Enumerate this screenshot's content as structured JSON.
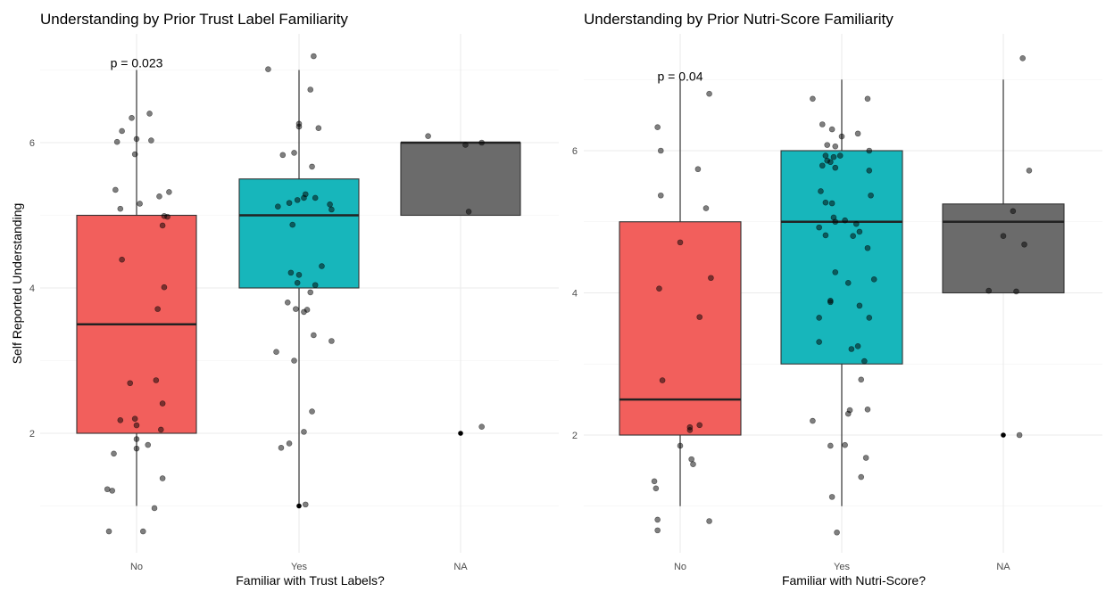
{
  "chart_data": [
    {
      "type": "box",
      "title": "Understanding by Prior Trust Label Familiarity",
      "xlabel": "Familiar with Trust Labels?",
      "ylabel": "Self Reported Understanding",
      "categories": [
        "No",
        "Yes",
        "NA"
      ],
      "yticks": [
        2,
        4,
        6
      ],
      "ylim": [
        0.5,
        7.8
      ],
      "annotation": {
        "text": "p = 0.023",
        "x": 1,
        "y": 7.1
      },
      "colors": [
        "#F25F5C",
        "#17B6BB",
        "#6B6B6B"
      ],
      "boxes": [
        {
          "category": "No",
          "min": 1,
          "q1": 2,
          "median": 3.5,
          "q3": 5,
          "max": 7,
          "outliers": []
        },
        {
          "category": "Yes",
          "min": 1,
          "q1": 4,
          "median": 5,
          "q3": 5.5,
          "max": 7,
          "outliers": [
            1
          ]
        },
        {
          "category": "NA",
          "min": 5,
          "q1": 5,
          "median": 6,
          "q3": 6,
          "max": 6,
          "outliers": [
            2
          ]
        }
      ],
      "points": [
        {
          "cat": 1,
          "dx": -0.17,
          "y": 0.65
        },
        {
          "cat": 1,
          "dx": 0.04,
          "y": 0.65
        },
        {
          "cat": 1,
          "dx": 0.11,
          "y": 0.97
        },
        {
          "cat": 1,
          "dx": -0.18,
          "y": 1.23
        },
        {
          "cat": 1,
          "dx": -0.15,
          "y": 1.21
        },
        {
          "cat": 1,
          "dx": -0.14,
          "y": 1.72
        },
        {
          "cat": 1,
          "dx": 0.16,
          "y": 1.38
        },
        {
          "cat": 1,
          "dx": 0.0,
          "y": 1.79
        },
        {
          "cat": 1,
          "dx": 0.0,
          "y": 1.92
        },
        {
          "cat": 1,
          "dx": 0.07,
          "y": 1.84
        },
        {
          "cat": 1,
          "dx": -0.1,
          "y": 2.18
        },
        {
          "cat": 1,
          "dx": -0.01,
          "y": 2.2
        },
        {
          "cat": 1,
          "dx": 0.0,
          "y": 2.11
        },
        {
          "cat": 1,
          "dx": 0.15,
          "y": 2.05
        },
        {
          "cat": 1,
          "dx": -0.04,
          "y": 2.69
        },
        {
          "cat": 1,
          "dx": 0.12,
          "y": 2.73
        },
        {
          "cat": 1,
          "dx": 0.16,
          "y": 2.41
        },
        {
          "cat": 1,
          "dx": 0.13,
          "y": 3.71
        },
        {
          "cat": 1,
          "dx": 0.17,
          "y": 4.01
        },
        {
          "cat": 1,
          "dx": -0.09,
          "y": 4.39
        },
        {
          "cat": 1,
          "dx": 0.16,
          "y": 4.86
        },
        {
          "cat": 1,
          "dx": 0.17,
          "y": 4.99
        },
        {
          "cat": 1,
          "dx": 0.19,
          "y": 4.98
        },
        {
          "cat": 1,
          "dx": -0.1,
          "y": 5.09
        },
        {
          "cat": 1,
          "dx": 0.02,
          "y": 5.16
        },
        {
          "cat": 1,
          "dx": 0.14,
          "y": 5.26
        },
        {
          "cat": 1,
          "dx": 0.2,
          "y": 5.32
        },
        {
          "cat": 1,
          "dx": -0.13,
          "y": 5.35
        },
        {
          "cat": 1,
          "dx": -0.01,
          "y": 5.84
        },
        {
          "cat": 1,
          "dx": -0.12,
          "y": 6.01
        },
        {
          "cat": 1,
          "dx": 0.0,
          "y": 6.05
        },
        {
          "cat": 1,
          "dx": 0.09,
          "y": 6.03
        },
        {
          "cat": 1,
          "dx": -0.09,
          "y": 6.16
        },
        {
          "cat": 1,
          "dx": -0.03,
          "y": 6.34
        },
        {
          "cat": 1,
          "dx": 0.08,
          "y": 6.4
        },
        {
          "cat": 2,
          "dx": -0.19,
          "y": 7.01
        },
        {
          "cat": 2,
          "dx": 0.09,
          "y": 7.19
        },
        {
          "cat": 2,
          "dx": 0.07,
          "y": 6.73
        },
        {
          "cat": 2,
          "dx": 0.0,
          "y": 6.22
        },
        {
          "cat": 2,
          "dx": 0.0,
          "y": 6.26
        },
        {
          "cat": 2,
          "dx": 0.12,
          "y": 6.2
        },
        {
          "cat": 2,
          "dx": -0.1,
          "y": 5.83
        },
        {
          "cat": 2,
          "dx": -0.03,
          "y": 5.86
        },
        {
          "cat": 2,
          "dx": 0.08,
          "y": 5.67
        },
        {
          "cat": 2,
          "dx": -0.13,
          "y": 5.12
        },
        {
          "cat": 2,
          "dx": -0.06,
          "y": 5.17
        },
        {
          "cat": 2,
          "dx": -0.01,
          "y": 5.21
        },
        {
          "cat": 2,
          "dx": 0.03,
          "y": 5.24
        },
        {
          "cat": 2,
          "dx": 0.04,
          "y": 5.29
        },
        {
          "cat": 2,
          "dx": 0.1,
          "y": 5.24
        },
        {
          "cat": 2,
          "dx": 0.19,
          "y": 5.15
        },
        {
          "cat": 2,
          "dx": 0.2,
          "y": 5.08
        },
        {
          "cat": 2,
          "dx": -0.04,
          "y": 4.87
        },
        {
          "cat": 2,
          "dx": -0.05,
          "y": 4.21
        },
        {
          "cat": 2,
          "dx": 0.14,
          "y": 4.3
        },
        {
          "cat": 2,
          "dx": 0.0,
          "y": 4.18
        },
        {
          "cat": 2,
          "dx": -0.01,
          "y": 4.07
        },
        {
          "cat": 2,
          "dx": 0.1,
          "y": 4.04
        },
        {
          "cat": 2,
          "dx": 0.07,
          "y": 3.94
        },
        {
          "cat": 2,
          "dx": -0.07,
          "y": 3.8
        },
        {
          "cat": 2,
          "dx": -0.02,
          "y": 3.71
        },
        {
          "cat": 2,
          "dx": 0.03,
          "y": 3.67
        },
        {
          "cat": 2,
          "dx": 0.05,
          "y": 3.7
        },
        {
          "cat": 2,
          "dx": 0.09,
          "y": 3.35
        },
        {
          "cat": 2,
          "dx": 0.2,
          "y": 3.27
        },
        {
          "cat": 2,
          "dx": -0.14,
          "y": 3.12
        },
        {
          "cat": 2,
          "dx": -0.03,
          "y": 3.0
        },
        {
          "cat": 2,
          "dx": 0.08,
          "y": 2.3
        },
        {
          "cat": 2,
          "dx": 0.03,
          "y": 2.02
        },
        {
          "cat": 2,
          "dx": -0.06,
          "y": 1.86
        },
        {
          "cat": 2,
          "dx": -0.11,
          "y": 1.8
        },
        {
          "cat": 2,
          "dx": 0.04,
          "y": 1.02
        },
        {
          "cat": 3,
          "dx": -0.2,
          "y": 6.09
        },
        {
          "cat": 3,
          "dx": 0.03,
          "y": 5.97
        },
        {
          "cat": 3,
          "dx": 0.13,
          "y": 6.0
        },
        {
          "cat": 3,
          "dx": 0.05,
          "y": 5.05
        },
        {
          "cat": 3,
          "dx": 0.13,
          "y": 2.09
        }
      ]
    },
    {
      "type": "box",
      "title": "Understanding by Prior Nutri-Score Familiarity",
      "xlabel": "Familiar with Nutri-Score?",
      "ylabel": "",
      "categories": [
        "No",
        "Yes",
        "NA"
      ],
      "yticks": [
        2,
        4,
        6
      ],
      "ylim": [
        0.5,
        7.5
      ],
      "annotation": {
        "text": "p = 0.04",
        "x": 1,
        "y": 7.05
      },
      "colors": [
        "#F25F5C",
        "#17B6BB",
        "#6B6B6B"
      ],
      "boxes": [
        {
          "category": "No",
          "min": 1,
          "q1": 2,
          "median": 2.5,
          "q3": 5,
          "max": 7,
          "outliers": []
        },
        {
          "category": "Yes",
          "min": 1,
          "q1": 3,
          "median": 5,
          "q3": 6,
          "max": 7,
          "outliers": []
        },
        {
          "category": "NA",
          "min": 4,
          "q1": 4,
          "median": 5,
          "q3": 5.25,
          "max": 7,
          "outliers": [
            2
          ]
        }
      ],
      "points": [
        {
          "cat": 1,
          "dx": -0.14,
          "y": 0.81
        },
        {
          "cat": 1,
          "dx": 0.18,
          "y": 0.79
        },
        {
          "cat": 1,
          "dx": -0.14,
          "y": 0.66
        },
        {
          "cat": 1,
          "dx": -0.16,
          "y": 1.35
        },
        {
          "cat": 1,
          "dx": -0.15,
          "y": 1.25
        },
        {
          "cat": 1,
          "dx": 0.07,
          "y": 1.66
        },
        {
          "cat": 1,
          "dx": 0.08,
          "y": 1.59
        },
        {
          "cat": 1,
          "dx": 0.0,
          "y": 1.85
        },
        {
          "cat": 1,
          "dx": 0.06,
          "y": 2.07
        },
        {
          "cat": 1,
          "dx": 0.06,
          "y": 2.11
        },
        {
          "cat": 1,
          "dx": 0.12,
          "y": 2.14
        },
        {
          "cat": 1,
          "dx": -0.11,
          "y": 2.77
        },
        {
          "cat": 1,
          "dx": 0.12,
          "y": 3.66
        },
        {
          "cat": 1,
          "dx": -0.13,
          "y": 4.06
        },
        {
          "cat": 1,
          "dx": 0.19,
          "y": 4.21
        },
        {
          "cat": 1,
          "dx": 0.0,
          "y": 4.71
        },
        {
          "cat": 1,
          "dx": 0.16,
          "y": 5.19
        },
        {
          "cat": 1,
          "dx": -0.12,
          "y": 5.37
        },
        {
          "cat": 1,
          "dx": 0.11,
          "y": 5.74
        },
        {
          "cat": 1,
          "dx": -0.12,
          "y": 6.0
        },
        {
          "cat": 1,
          "dx": -0.14,
          "y": 6.33
        },
        {
          "cat": 1,
          "dx": 0.18,
          "y": 6.8
        },
        {
          "cat": 2,
          "dx": -0.18,
          "y": 6.73
        },
        {
          "cat": 2,
          "dx": 0.16,
          "y": 6.73
        },
        {
          "cat": 2,
          "dx": -0.12,
          "y": 6.37
        },
        {
          "cat": 2,
          "dx": -0.06,
          "y": 6.3
        },
        {
          "cat": 2,
          "dx": 0.0,
          "y": 6.2
        },
        {
          "cat": 2,
          "dx": 0.1,
          "y": 6.24
        },
        {
          "cat": 2,
          "dx": -0.09,
          "y": 6.08
        },
        {
          "cat": 2,
          "dx": -0.04,
          "y": 6.06
        },
        {
          "cat": 2,
          "dx": 0.17,
          "y": 6.0
        },
        {
          "cat": 2,
          "dx": -0.1,
          "y": 5.93
        },
        {
          "cat": 2,
          "dx": -0.05,
          "y": 5.91
        },
        {
          "cat": 2,
          "dx": -0.01,
          "y": 5.93
        },
        {
          "cat": 2,
          "dx": -0.09,
          "y": 5.86
        },
        {
          "cat": 2,
          "dx": -0.07,
          "y": 5.84
        },
        {
          "cat": 2,
          "dx": -0.12,
          "y": 5.79
        },
        {
          "cat": 2,
          "dx": -0.04,
          "y": 5.76
        },
        {
          "cat": 2,
          "dx": 0.17,
          "y": 5.72
        },
        {
          "cat": 2,
          "dx": -0.13,
          "y": 5.43
        },
        {
          "cat": 2,
          "dx": 0.18,
          "y": 5.37
        },
        {
          "cat": 2,
          "dx": -0.1,
          "y": 5.27
        },
        {
          "cat": 2,
          "dx": -0.06,
          "y": 5.26
        },
        {
          "cat": 2,
          "dx": -0.05,
          "y": 5.06
        },
        {
          "cat": 2,
          "dx": -0.04,
          "y": 5.0
        },
        {
          "cat": 2,
          "dx": 0.02,
          "y": 5.02
        },
        {
          "cat": 2,
          "dx": 0.09,
          "y": 4.97
        },
        {
          "cat": 2,
          "dx": -0.14,
          "y": 4.92
        },
        {
          "cat": 2,
          "dx": 0.11,
          "y": 4.86
        },
        {
          "cat": 2,
          "dx": 0.07,
          "y": 4.8
        },
        {
          "cat": 2,
          "dx": -0.1,
          "y": 4.81
        },
        {
          "cat": 2,
          "dx": 0.16,
          "y": 4.63
        },
        {
          "cat": 2,
          "dx": -0.04,
          "y": 4.29
        },
        {
          "cat": 2,
          "dx": 0.04,
          "y": 4.14
        },
        {
          "cat": 2,
          "dx": 0.2,
          "y": 4.19
        },
        {
          "cat": 2,
          "dx": -0.07,
          "y": 3.89
        },
        {
          "cat": 2,
          "dx": -0.07,
          "y": 3.87
        },
        {
          "cat": 2,
          "dx": 0.11,
          "y": 3.82
        },
        {
          "cat": 2,
          "dx": -0.14,
          "y": 3.65
        },
        {
          "cat": 2,
          "dx": 0.17,
          "y": 3.65
        },
        {
          "cat": 2,
          "dx": -0.14,
          "y": 3.31
        },
        {
          "cat": 2,
          "dx": 0.1,
          "y": 3.25
        },
        {
          "cat": 2,
          "dx": 0.06,
          "y": 3.21
        },
        {
          "cat": 2,
          "dx": 0.14,
          "y": 3.04
        },
        {
          "cat": 2,
          "dx": 0.12,
          "y": 2.78
        },
        {
          "cat": 2,
          "dx": 0.16,
          "y": 2.36
        },
        {
          "cat": 2,
          "dx": 0.05,
          "y": 2.35
        },
        {
          "cat": 2,
          "dx": 0.04,
          "y": 2.3
        },
        {
          "cat": 2,
          "dx": -0.18,
          "y": 2.2
        },
        {
          "cat": 2,
          "dx": -0.07,
          "y": 1.85
        },
        {
          "cat": 2,
          "dx": 0.02,
          "y": 1.86
        },
        {
          "cat": 2,
          "dx": 0.15,
          "y": 1.68
        },
        {
          "cat": 2,
          "dx": 0.12,
          "y": 1.41
        },
        {
          "cat": 2,
          "dx": -0.06,
          "y": 1.13
        },
        {
          "cat": 2,
          "dx": -0.03,
          "y": 0.63
        },
        {
          "cat": 3,
          "dx": 0.12,
          "y": 7.3
        },
        {
          "cat": 3,
          "dx": 0.16,
          "y": 5.72
        },
        {
          "cat": 3,
          "dx": 0.06,
          "y": 5.15
        },
        {
          "cat": 3,
          "dx": 0.0,
          "y": 4.8
        },
        {
          "cat": 3,
          "dx": 0.13,
          "y": 4.68
        },
        {
          "cat": 3,
          "dx": -0.09,
          "y": 4.03
        },
        {
          "cat": 3,
          "dx": 0.08,
          "y": 4.02
        },
        {
          "cat": 3,
          "dx": 0.1,
          "y": 2.0
        }
      ]
    }
  ]
}
